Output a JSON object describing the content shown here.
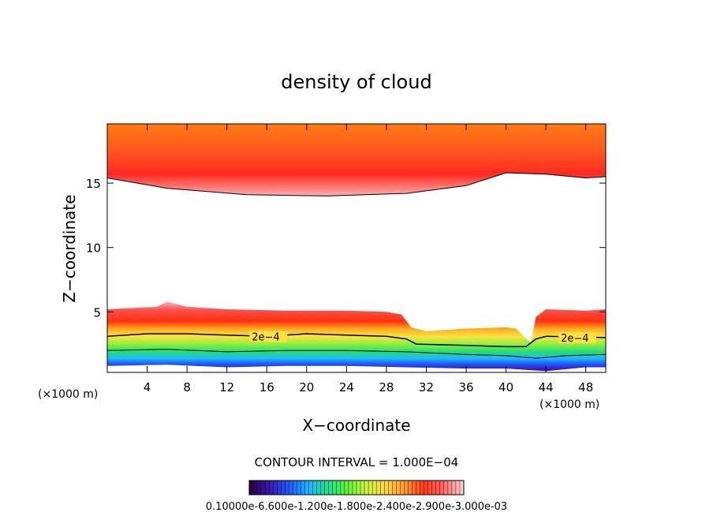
{
  "chart_data": {
    "type": "contour",
    "title": "density of cloud",
    "xlabel": "X−coordinate",
    "ylabel": "Z−coordinate",
    "x_unit_left": "(×1000 m)",
    "x_unit_right": "(×1000 m)",
    "xlim": [
      0,
      50
    ],
    "ylim": [
      0.3,
      19.6
    ],
    "x_ticks": [
      4,
      8,
      12,
      16,
      20,
      24,
      28,
      32,
      36,
      40,
      44,
      48
    ],
    "y_ticks": [
      5,
      10,
      15
    ],
    "contour_interval_text": "CONTOUR INTERVAL = 1.000E−04",
    "contour_labels": [
      "2e−4",
      "2e−4"
    ],
    "colorbar_labels_text": "0.10000e-6.600e-1.200e-1.800e-2.400e-2.900e-3.000e-03",
    "colormap": [
      "#2a0050",
      "#3a1ab0",
      "#1f5cff",
      "#19b6ff",
      "#22e08a",
      "#5cf23a",
      "#c6f53a",
      "#ffd54a",
      "#ff9c2a",
      "#ff3a1a",
      "#ff6060",
      "#ffc8c8"
    ],
    "upper_cloud_bottom": [
      [
        0,
        15.4
      ],
      [
        6,
        14.6
      ],
      [
        14,
        14.1
      ],
      [
        22,
        14.0
      ],
      [
        30,
        14.2
      ],
      [
        36,
        14.8
      ],
      [
        40,
        15.8
      ],
      [
        44,
        15.7
      ],
      [
        48,
        15.4
      ],
      [
        50,
        15.5
      ]
    ],
    "lower_cloud_top": [
      [
        0,
        5.2
      ],
      [
        5,
        5.4
      ],
      [
        6,
        5.8
      ],
      [
        8,
        5.4
      ],
      [
        12,
        5.2
      ],
      [
        18,
        5.1
      ],
      [
        24,
        5.1
      ],
      [
        28,
        5.0
      ],
      [
        29.5,
        4.8
      ],
      [
        30.5,
        3.8
      ],
      [
        32,
        3.5
      ],
      [
        36,
        3.7
      ],
      [
        40,
        3.8
      ],
      [
        41,
        3.7
      ],
      [
        42.5,
        2.6
      ],
      [
        43,
        4.6
      ],
      [
        44,
        5.2
      ],
      [
        48,
        5.1
      ],
      [
        50,
        5.2
      ]
    ],
    "contour_2e4": [
      [
        0,
        3.1
      ],
      [
        4,
        3.3
      ],
      [
        8,
        3.3
      ],
      [
        12,
        3.2
      ],
      [
        16,
        3.1
      ],
      [
        20,
        3.3
      ],
      [
        24,
        3.2
      ],
      [
        28,
        3.1
      ],
      [
        30,
        2.9
      ],
      [
        31,
        2.5
      ],
      [
        36,
        2.4
      ],
      [
        40,
        2.3
      ],
      [
        42,
        2.3
      ],
      [
        43,
        2.9
      ],
      [
        44,
        3.1
      ],
      [
        50,
        3.0
      ]
    ],
    "contour_lower": [
      [
        0,
        2.0
      ],
      [
        6,
        2.1
      ],
      [
        12,
        1.9
      ],
      [
        18,
        2.0
      ],
      [
        24,
        2.0
      ],
      [
        30,
        1.9
      ],
      [
        36,
        1.7
      ],
      [
        40,
        1.6
      ],
      [
        43,
        1.4
      ],
      [
        46,
        1.6
      ],
      [
        50,
        1.7
      ]
    ],
    "cloud_base": [
      [
        0,
        0.8
      ],
      [
        6,
        0.9
      ],
      [
        12,
        0.7
      ],
      [
        18,
        0.8
      ],
      [
        24,
        0.8
      ],
      [
        30,
        0.7
      ],
      [
        36,
        0.6
      ],
      [
        40,
        0.6
      ],
      [
        44,
        0.4
      ],
      [
        48,
        0.7
      ],
      [
        50,
        0.7
      ]
    ]
  }
}
